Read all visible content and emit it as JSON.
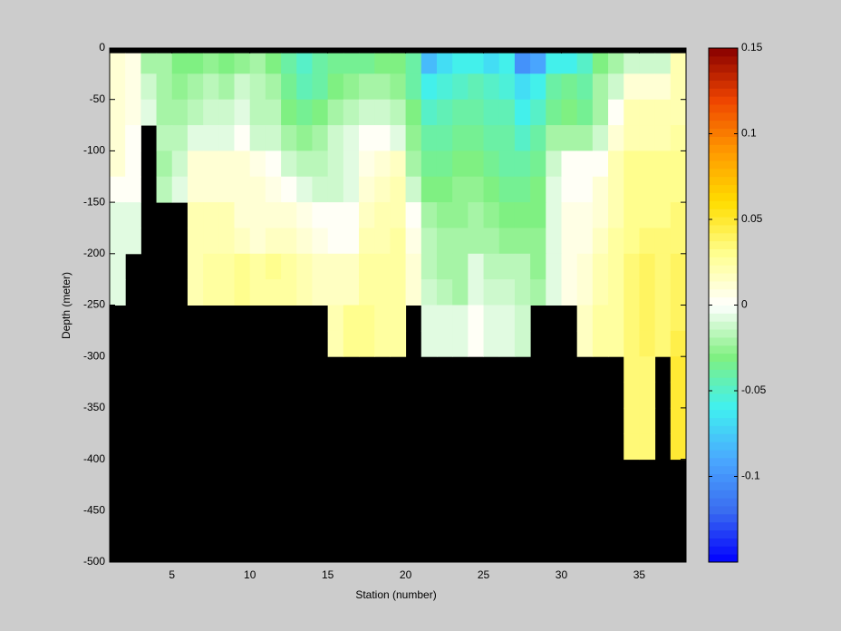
{
  "chart_data": {
    "type": "heatmap",
    "x_label": "Station (number)",
    "y_label": "Depth (meter)",
    "xlim": [
      1,
      38
    ],
    "ylim": [
      -500,
      0
    ],
    "xticks": [
      5,
      10,
      15,
      20,
      25,
      30,
      35
    ],
    "yticks": [
      0,
      -50,
      -100,
      -150,
      -200,
      -250,
      -300,
      -350,
      -400,
      -450,
      -500
    ],
    "xbins": [
      1,
      2,
      3,
      4,
      5,
      6,
      7,
      8,
      9,
      10,
      11,
      12,
      13,
      14,
      15,
      16,
      17,
      18,
      19,
      20,
      21,
      22,
      23,
      24,
      25,
      26,
      27,
      28,
      29,
      30,
      31,
      32,
      33,
      34,
      35,
      36,
      37,
      38
    ],
    "ybins": [
      0,
      -5,
      -25,
      -50,
      -75,
      -100,
      -125,
      -150,
      -175,
      -200,
      -225,
      -250,
      -275,
      -300,
      -325,
      -350,
      -375,
      -400
    ],
    "values": [
      [
        null,
        null,
        null,
        null,
        null,
        null,
        null,
        null,
        null,
        null,
        null,
        null,
        null,
        null,
        null,
        null,
        null,
        null,
        null,
        null,
        null,
        null,
        null,
        null,
        null,
        null,
        null,
        null,
        null,
        null,
        null,
        null,
        null,
        null,
        null,
        null,
        null
      ],
      [
        0.01,
        0.005,
        -0.02,
        -0.02,
        -0.03,
        -0.03,
        -0.025,
        -0.03,
        -0.025,
        -0.02,
        -0.03,
        -0.04,
        -0.05,
        -0.04,
        -0.035,
        -0.035,
        -0.035,
        -0.03,
        -0.03,
        -0.04,
        -0.08,
        -0.07,
        -0.06,
        -0.06,
        -0.07,
        -0.06,
        -0.1,
        -0.09,
        -0.06,
        -0.06,
        -0.05,
        -0.03,
        -0.02,
        -0.01,
        -0.01,
        -0.01,
        0.02
      ],
      [
        0.01,
        0.005,
        -0.01,
        -0.02,
        -0.025,
        -0.02,
        -0.015,
        -0.02,
        -0.01,
        -0.015,
        -0.02,
        -0.035,
        -0.045,
        -0.04,
        -0.03,
        -0.025,
        -0.02,
        -0.02,
        -0.025,
        -0.04,
        -0.06,
        -0.055,
        -0.05,
        -0.045,
        -0.05,
        -0.055,
        -0.07,
        -0.06,
        -0.04,
        -0.035,
        -0.04,
        -0.02,
        -0.01,
        0.01,
        0.01,
        0.01,
        0.02
      ],
      [
        0.01,
        0.005,
        -0.005,
        -0.02,
        -0.02,
        -0.015,
        -0.01,
        -0.01,
        -0.005,
        -0.015,
        -0.015,
        -0.03,
        -0.035,
        -0.03,
        -0.02,
        -0.015,
        -0.01,
        -0.01,
        -0.015,
        -0.03,
        -0.05,
        -0.045,
        -0.04,
        -0.04,
        -0.045,
        -0.045,
        -0.06,
        -0.05,
        -0.035,
        -0.03,
        -0.035,
        -0.02,
        0,
        0.02,
        0.02,
        0.02,
        0.02
      ],
      [
        0.01,
        0,
        null,
        -0.015,
        -0.015,
        -0.005,
        -0.005,
        -0.005,
        0,
        -0.01,
        -0.01,
        -0.02,
        -0.025,
        -0.02,
        -0.01,
        -0.005,
        0,
        0,
        -0.005,
        -0.025,
        -0.04,
        -0.04,
        -0.035,
        -0.035,
        -0.04,
        -0.04,
        -0.05,
        -0.04,
        -0.02,
        -0.02,
        -0.02,
        -0.01,
        0.01,
        0.02,
        0.02,
        0.02,
        0.025
      ],
      [
        0.01,
        0,
        null,
        -0.02,
        -0.01,
        0.01,
        0.01,
        0.01,
        0.01,
        0.005,
        0,
        -0.01,
        -0.015,
        -0.015,
        -0.01,
        -0.005,
        0.005,
        0.01,
        0.015,
        -0.02,
        -0.035,
        -0.035,
        -0.03,
        -0.03,
        -0.035,
        -0.04,
        -0.04,
        -0.035,
        -0.01,
        0,
        0,
        0,
        0.02,
        0.03,
        0.03,
        0.03,
        0.03
      ],
      [
        0,
        0,
        null,
        -0.015,
        -0.005,
        0.01,
        0.01,
        0.01,
        0.01,
        0.01,
        0.005,
        0,
        -0.005,
        -0.01,
        -0.01,
        -0.005,
        0.01,
        0.015,
        0.02,
        -0.01,
        -0.03,
        -0.03,
        -0.025,
        -0.025,
        -0.03,
        -0.035,
        -0.035,
        -0.03,
        -0.005,
        0,
        0,
        0.01,
        0.02,
        0.03,
        0.03,
        0.03,
        0.03
      ],
      [
        -0.005,
        -0.005,
        null,
        null,
        null,
        0.02,
        0.02,
        0.02,
        0.01,
        0.01,
        0.01,
        0.01,
        0.005,
        0,
        0,
        0,
        0.015,
        0.02,
        0.02,
        0,
        -0.02,
        -0.025,
        -0.025,
        -0.02,
        -0.025,
        -0.03,
        -0.03,
        -0.03,
        -0.005,
        0.005,
        0.005,
        0.01,
        0.02,
        0.03,
        0.03,
        0.03,
        0.035
      ],
      [
        -0.005,
        -0.005,
        null,
        null,
        null,
        0.02,
        0.02,
        0.02,
        0.015,
        0.01,
        0.015,
        0.015,
        0.01,
        0.005,
        0,
        0,
        0.02,
        0.02,
        0.025,
        0.005,
        -0.015,
        -0.02,
        -0.02,
        -0.02,
        -0.02,
        -0.025,
        -0.025,
        -0.025,
        -0.005,
        0.005,
        0.005,
        0.015,
        0.025,
        0.03,
        0.035,
        0.035,
        0.035
      ],
      [
        -0.005,
        null,
        null,
        null,
        null,
        0.02,
        0.025,
        0.025,
        0.03,
        0.025,
        0.03,
        0.025,
        0.02,
        0.015,
        0.015,
        0.015,
        0.025,
        0.025,
        0.025,
        0.01,
        -0.015,
        -0.02,
        -0.02,
        -0.005,
        -0.015,
        -0.015,
        -0.015,
        -0.025,
        -0.005,
        0.005,
        0.01,
        0.02,
        0.025,
        0.035,
        0.04,
        0.035,
        0.04
      ],
      [
        -0.005,
        null,
        null,
        null,
        null,
        0.02,
        0.025,
        0.025,
        0.03,
        0.025,
        0.025,
        0.025,
        0.02,
        0.015,
        0.015,
        0.015,
        0.025,
        0.025,
        0.025,
        0.01,
        -0.01,
        -0.015,
        -0.02,
        -0.005,
        -0.01,
        -0.01,
        -0.015,
        -0.02,
        -0.005,
        0.005,
        0.01,
        0.02,
        0.025,
        0.035,
        0.04,
        0.035,
        0.04
      ],
      [
        null,
        null,
        null,
        null,
        null,
        null,
        null,
        null,
        null,
        null,
        null,
        null,
        null,
        null,
        0.02,
        0.03,
        0.03,
        0.025,
        0.025,
        null,
        -0.005,
        -0.005,
        -0.005,
        0,
        -0.005,
        -0.005,
        -0.01,
        null,
        null,
        null,
        0.015,
        0.025,
        0.025,
        0.035,
        0.04,
        0.035,
        0.04
      ],
      [
        null,
        null,
        null,
        null,
        null,
        null,
        null,
        null,
        null,
        null,
        null,
        null,
        null,
        null,
        0.02,
        0.03,
        0.03,
        0.025,
        0.025,
        null,
        -0.005,
        -0.005,
        -0.005,
        0,
        -0.005,
        -0.005,
        -0.01,
        null,
        null,
        null,
        0.015,
        0.025,
        0.025,
        0.035,
        0.04,
        0.035,
        0.045
      ],
      [
        null,
        null,
        null,
        null,
        null,
        null,
        null,
        null,
        null,
        null,
        null,
        null,
        null,
        null,
        null,
        null,
        null,
        null,
        null,
        null,
        null,
        null,
        null,
        null,
        null,
        null,
        null,
        null,
        null,
        null,
        null,
        null,
        null,
        0.035,
        0.035,
        null,
        0.05
      ],
      [
        null,
        null,
        null,
        null,
        null,
        null,
        null,
        null,
        null,
        null,
        null,
        null,
        null,
        null,
        null,
        null,
        null,
        null,
        null,
        null,
        null,
        null,
        null,
        null,
        null,
        null,
        null,
        null,
        null,
        null,
        null,
        null,
        null,
        0.035,
        0.035,
        null,
        0.05
      ],
      [
        null,
        null,
        null,
        null,
        null,
        null,
        null,
        null,
        null,
        null,
        null,
        null,
        null,
        null,
        null,
        null,
        null,
        null,
        null,
        null,
        null,
        null,
        null,
        null,
        null,
        null,
        null,
        null,
        null,
        null,
        null,
        null,
        null,
        0.035,
        0.035,
        null,
        0.05
      ],
      [
        null,
        null,
        null,
        null,
        null,
        null,
        null,
        null,
        null,
        null,
        null,
        null,
        null,
        null,
        null,
        null,
        null,
        null,
        null,
        null,
        null,
        null,
        null,
        null,
        null,
        null,
        null,
        null,
        null,
        null,
        null,
        null,
        null,
        0.035,
        0.035,
        null,
        0.05
      ]
    ],
    "clim": [
      -0.15,
      0.15
    ],
    "cticks": [
      0.15,
      0.1,
      0.05,
      0,
      -0.05,
      -0.1
    ],
    "colormap": [
      "#0000ff",
      "#3a6cf0",
      "#4aa8ff",
      "#40f0f0",
      "#80f080",
      "#ffffff",
      "#ffff90",
      "#ffdd00",
      "#ff9900",
      "#ee4400",
      "#880000"
    ],
    "colormap_levels": 64,
    "nan_color": "#000000"
  }
}
